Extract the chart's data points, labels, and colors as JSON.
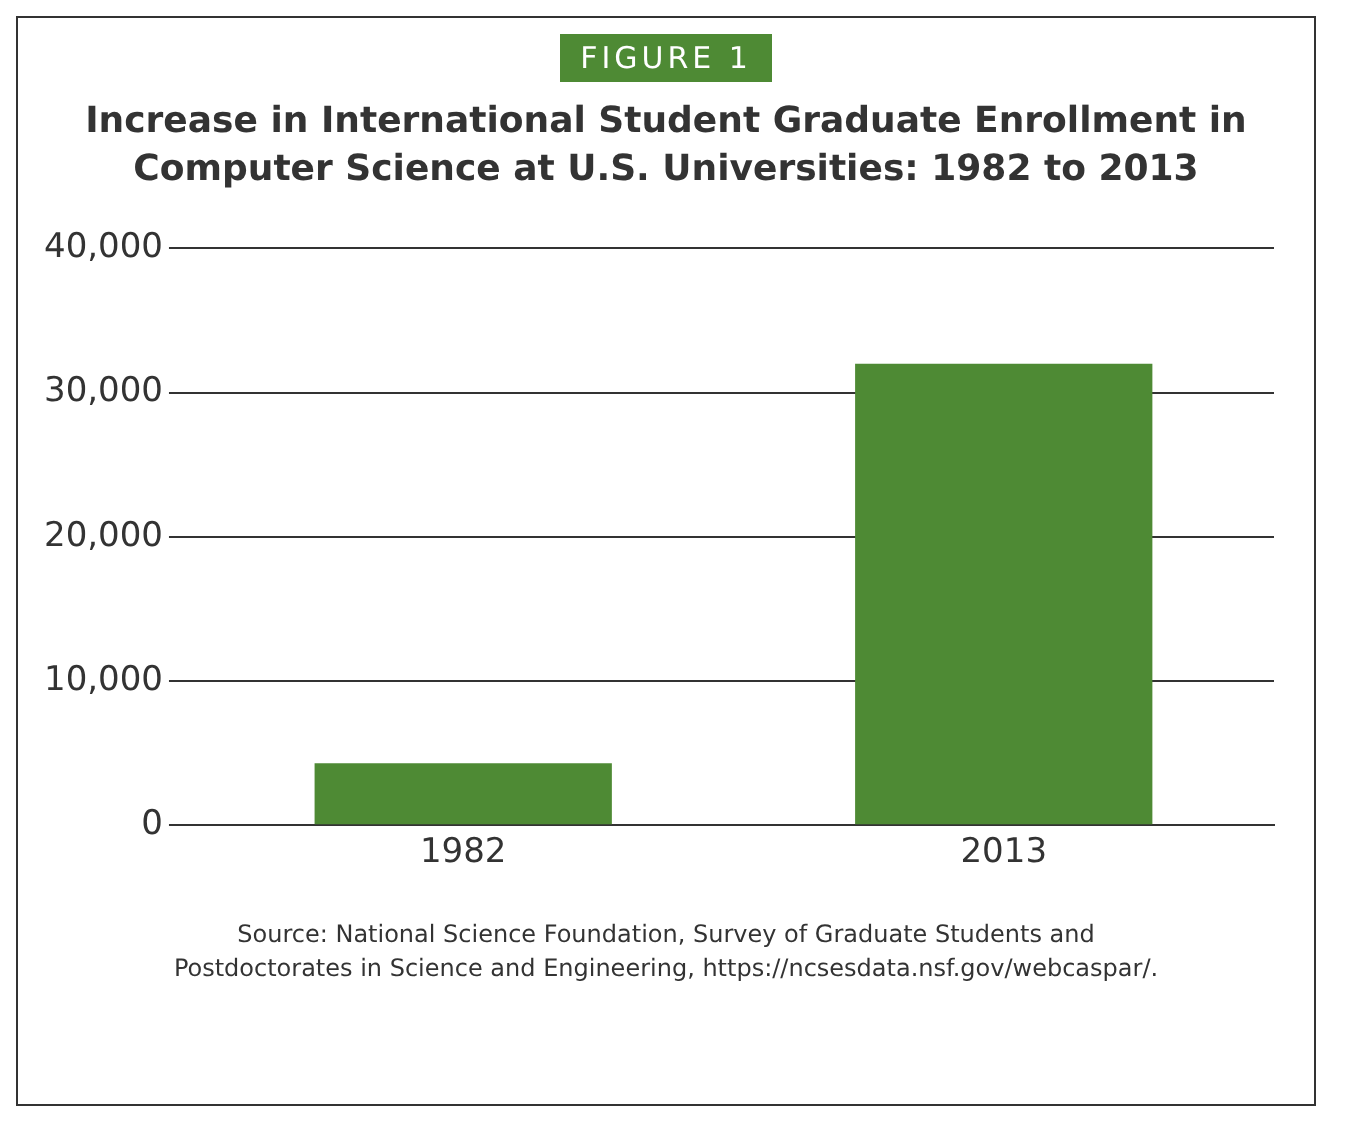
{
  "chart_data": {
    "type": "bar",
    "title": "Increase in International Student Graduate Enrollment in Computer Science at U.S. Universities: 1982 to 2013",
    "annotations": [
      "FIGURE 1",
      "Source: National Science Foundation, Survey of Graduate Students and Postdoctorates in Science and Engineering, https://ncsesdata.nsf.gov/webcaspar/."
    ],
    "categories": [
      "1982",
      "2013"
    ],
    "values": [
      4300,
      32000
    ],
    "color": "#4e8a34",
    "ylim": [
      0,
      40000
    ],
    "yticks": [
      0,
      {
        "value": 10000,
        "label": "10,000"
      },
      {
        "value": 20000,
        "label": "20,000"
      },
      {
        "value": 30000,
        "label": "30,000"
      },
      {
        "value": 40000,
        "label": "40,000"
      }
    ],
    "grid": "y"
  }
}
